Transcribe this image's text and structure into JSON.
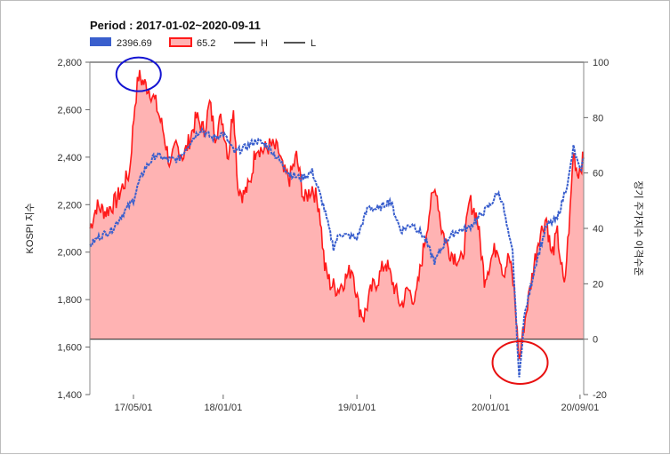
{
  "chart_data": {
    "type": "line",
    "title": "Period : 2017-01-02~2020-09-11",
    "ylabel": "KOSPI 지수",
    "y2label": "장기 주가지수 이격수준",
    "ylim": [
      1400,
      2800
    ],
    "y2lim": [
      -20,
      100
    ],
    "y_ticks": [
      "2,800",
      "2,600",
      "2,400",
      "2,200",
      "2,000",
      "1,800",
      "1,600",
      "1,400"
    ],
    "y2_ticks": [
      "100",
      "80",
      "60",
      "40",
      "20",
      "0",
      "-20"
    ],
    "x_tick_labels": [
      "17/05/01",
      "18/01/01",
      "19/01/01",
      "20/01/01",
      "20/09/01"
    ],
    "x_tick_dates": [
      "2017-05-01",
      "2018-01-01",
      "2019-01-01",
      "2020-01-01",
      "2020-09-01"
    ],
    "x_range": [
      "2017-01-02",
      "2020-09-11"
    ],
    "legend": [
      {
        "label": "2396.69",
        "color": "#3a5fcd",
        "style": "box"
      },
      {
        "label": "65.2",
        "color": "#ff1a1a",
        "style": "box-outline"
      },
      {
        "label": "H",
        "color": "#555555",
        "style": "line"
      },
      {
        "label": "L",
        "color": "#555555",
        "style": "line"
      }
    ],
    "reference_lines": {
      "H": 100,
      "L": 0
    },
    "grid": false,
    "colors": {
      "kospi": "#3a5fcd",
      "gap": "#ff1a1a",
      "gap_fill": "#ffb3b3",
      "marker": "#e81010",
      "marker_peak": "#1414d2"
    },
    "series": [
      {
        "name": "2396.69",
        "axis": "left",
        "x": [
          "2017-01-02",
          "2017-02-01",
          "2017-03-01",
          "2017-04-01",
          "2017-05-01",
          "2017-05-15",
          "2017-06-01",
          "2017-07-01",
          "2017-08-01",
          "2017-09-01",
          "2017-10-01",
          "2017-11-01",
          "2017-12-01",
          "2018-01-01",
          "2018-02-01",
          "2018-03-01",
          "2018-04-01",
          "2018-05-01",
          "2018-06-01",
          "2018-07-01",
          "2018-08-01",
          "2018-09-01",
          "2018-10-01",
          "2018-10-29",
          "2018-11-15",
          "2018-12-01",
          "2019-01-01",
          "2019-02-01",
          "2019-03-01",
          "2019-04-01",
          "2019-05-01",
          "2019-06-01",
          "2019-07-01",
          "2019-08-01",
          "2019-09-01",
          "2019-10-01",
          "2019-11-01",
          "2019-12-01",
          "2020-01-01",
          "2020-01-20",
          "2020-02-01",
          "2020-02-20",
          "2020-03-01",
          "2020-03-19",
          "2020-04-01",
          "2020-05-01",
          "2020-06-01",
          "2020-07-01",
          "2020-08-01",
          "2020-08-14",
          "2020-09-01",
          "2020-09-11"
        ],
        "values": [
          2030,
          2070,
          2090,
          2160,
          2220,
          2290,
          2350,
          2410,
          2390,
          2390,
          2460,
          2520,
          2480,
          2500,
          2420,
          2440,
          2470,
          2450,
          2390,
          2330,
          2310,
          2340,
          2200,
          2020,
          2080,
          2070,
          2060,
          2190,
          2180,
          2220,
          2090,
          2120,
          2070,
          1960,
          2050,
          2090,
          2100,
          2150,
          2200,
          2250,
          2220,
          2060,
          2000,
          1460,
          1720,
          1940,
          2110,
          2140,
          2310,
          2440,
          2340,
          2396.69
        ]
      },
      {
        "name": "65.2",
        "axis": "right",
        "x": [
          "2017-01-02",
          "2017-01-20",
          "2017-02-15",
          "2017-03-15",
          "2017-04-01",
          "2017-04-20",
          "2017-05-05",
          "2017-05-15",
          "2017-06-01",
          "2017-06-15",
          "2017-07-01",
          "2017-07-20",
          "2017-08-10",
          "2017-08-25",
          "2017-09-15",
          "2017-10-01",
          "2017-10-20",
          "2017-11-10",
          "2017-11-25",
          "2017-12-10",
          "2017-12-28",
          "2018-01-15",
          "2018-01-29",
          "2018-02-10",
          "2018-02-25",
          "2018-03-15",
          "2018-04-01",
          "2018-04-20",
          "2018-05-10",
          "2018-06-01",
          "2018-06-15",
          "2018-07-01",
          "2018-07-20",
          "2018-08-10",
          "2018-09-01",
          "2018-09-20",
          "2018-10-05",
          "2018-10-20",
          "2018-11-10",
          "2018-12-01",
          "2018-12-20",
          "2019-01-05",
          "2019-01-20",
          "2019-02-10",
          "2019-03-01",
          "2019-03-20",
          "2019-04-10",
          "2019-05-01",
          "2019-05-20",
          "2019-06-10",
          "2019-07-01",
          "2019-07-20",
          "2019-08-05",
          "2019-08-20",
          "2019-09-10",
          "2019-09-25",
          "2019-10-15",
          "2019-11-05",
          "2019-11-25",
          "2019-12-15",
          "2020-01-05",
          "2020-01-20",
          "2020-02-05",
          "2020-02-20",
          "2020-03-05",
          "2020-03-19",
          "2020-04-01",
          "2020-04-20",
          "2020-05-10",
          "2020-06-01",
          "2020-06-15",
          "2020-07-01",
          "2020-07-20",
          "2020-08-05",
          "2020-08-14",
          "2020-08-25",
          "2020-09-11"
        ],
        "values": [
          40,
          48,
          46,
          50,
          55,
          60,
          85,
          95,
          92,
          90,
          85,
          76,
          62,
          70,
          66,
          72,
          80,
          75,
          85,
          74,
          80,
          66,
          85,
          55,
          52,
          56,
          70,
          68,
          70,
          68,
          60,
          58,
          66,
          50,
          55,
          48,
          26,
          20,
          18,
          22,
          26,
          12,
          8,
          18,
          22,
          28,
          20,
          12,
          18,
          14,
          32,
          48,
          55,
          40,
          32,
          30,
          28,
          50,
          44,
          22,
          30,
          34,
          24,
          30,
          18,
          -8,
          5,
          20,
          36,
          44,
          30,
          38,
          18,
          46,
          68,
          60,
          65.2
        ]
      }
    ]
  }
}
